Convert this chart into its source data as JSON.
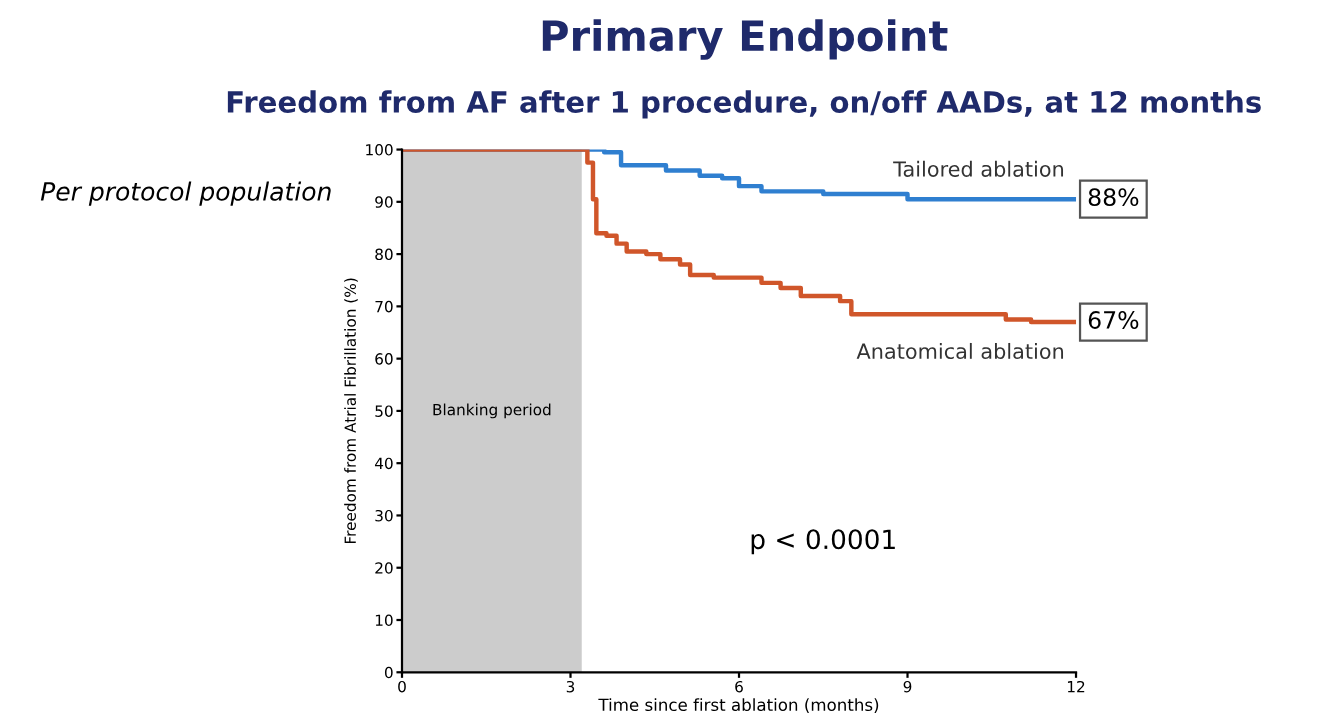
{
  "chart_data": {
    "type": "step",
    "title": "Primary Endpoint",
    "subtitle": "Freedom from AF after 1 procedure, on/off AADs, at 12 months",
    "xlabel": "Time since first ablation (months)",
    "ylabel": "Freedom from Atrial Fibrillation (%)",
    "xlim": [
      0,
      12
    ],
    "ylim": [
      0,
      100
    ],
    "xticks": [
      0,
      3,
      6,
      9,
      12
    ],
    "yticks": [
      0,
      10,
      20,
      30,
      40,
      50,
      60,
      70,
      80,
      90,
      100
    ],
    "grid": false,
    "legend": false,
    "series": [
      {
        "name": "Tailored ablation",
        "color": "#2f7fd0",
        "x": [
          0,
          3.2,
          3.6,
          3.9,
          4.7,
          5.3,
          5.7,
          6.0,
          6.4,
          7.5,
          9.0,
          12
        ],
        "values": [
          100,
          100,
          99.5,
          97,
          96,
          95,
          94.5,
          93,
          92,
          91.5,
          90.5,
          90.5
        ]
      },
      {
        "name": "Anatomical ablation",
        "color": "#d0562a",
        "x": [
          0,
          3.2,
          3.3,
          3.4,
          3.46,
          3.64,
          3.82,
          4.0,
          4.35,
          4.6,
          4.95,
          5.13,
          5.55,
          6.4,
          6.74,
          7.1,
          7.8,
          8.0,
          10.75,
          11.2,
          12
        ],
        "values": [
          100,
          100,
          97.5,
          90.5,
          84,
          83.5,
          82,
          80.5,
          80,
          79,
          78,
          76,
          75.5,
          74.5,
          73.5,
          72,
          71,
          68.5,
          67.5,
          67,
          67
        ]
      }
    ],
    "bands": [
      {
        "axis": "x",
        "from": 0,
        "to": 3.2,
        "label": "Blanking period",
        "color": "#cccccc"
      }
    ],
    "annotations": [
      {
        "text": "88%",
        "x": 12,
        "y": 90.5
      },
      {
        "text": "67%",
        "x": 12,
        "y": 67
      },
      "p < 0.0001",
      "Per protocol population"
    ]
  }
}
